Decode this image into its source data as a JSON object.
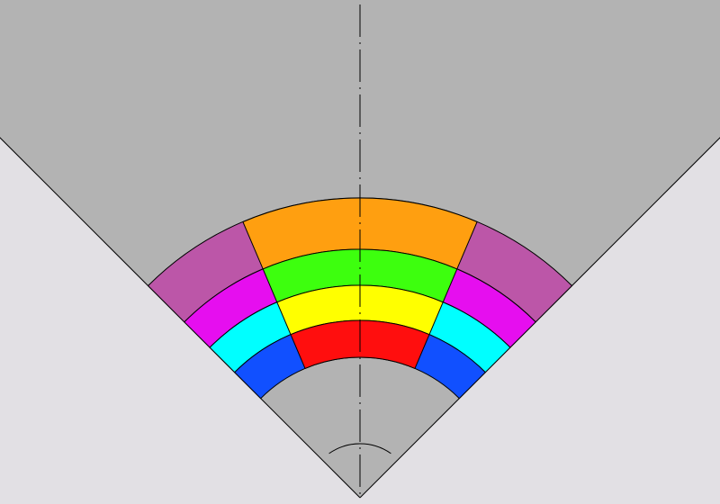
{
  "colors": {
    "background": "#e2e0e4",
    "outer_cone": "#b3b3b3",
    "outline": "#000000",
    "axis": "#000000"
  },
  "zones": {
    "outer": [
      {
        "id": "mauve-band",
        "color": "#bc56a8"
      },
      {
        "id": "magenta-band",
        "color": "#e60eef"
      },
      {
        "id": "cyan-band",
        "color": "#00ffff"
      },
      {
        "id": "blue-band",
        "color": "#1150ff"
      }
    ],
    "inner": [
      {
        "id": "orange-band",
        "color": "#ff9f10"
      },
      {
        "id": "green-band",
        "color": "#3dff0e"
      },
      {
        "id": "yellow-band",
        "color": "#ffff00"
      },
      {
        "id": "red-core",
        "color": "#ff0e0e"
      }
    ]
  }
}
